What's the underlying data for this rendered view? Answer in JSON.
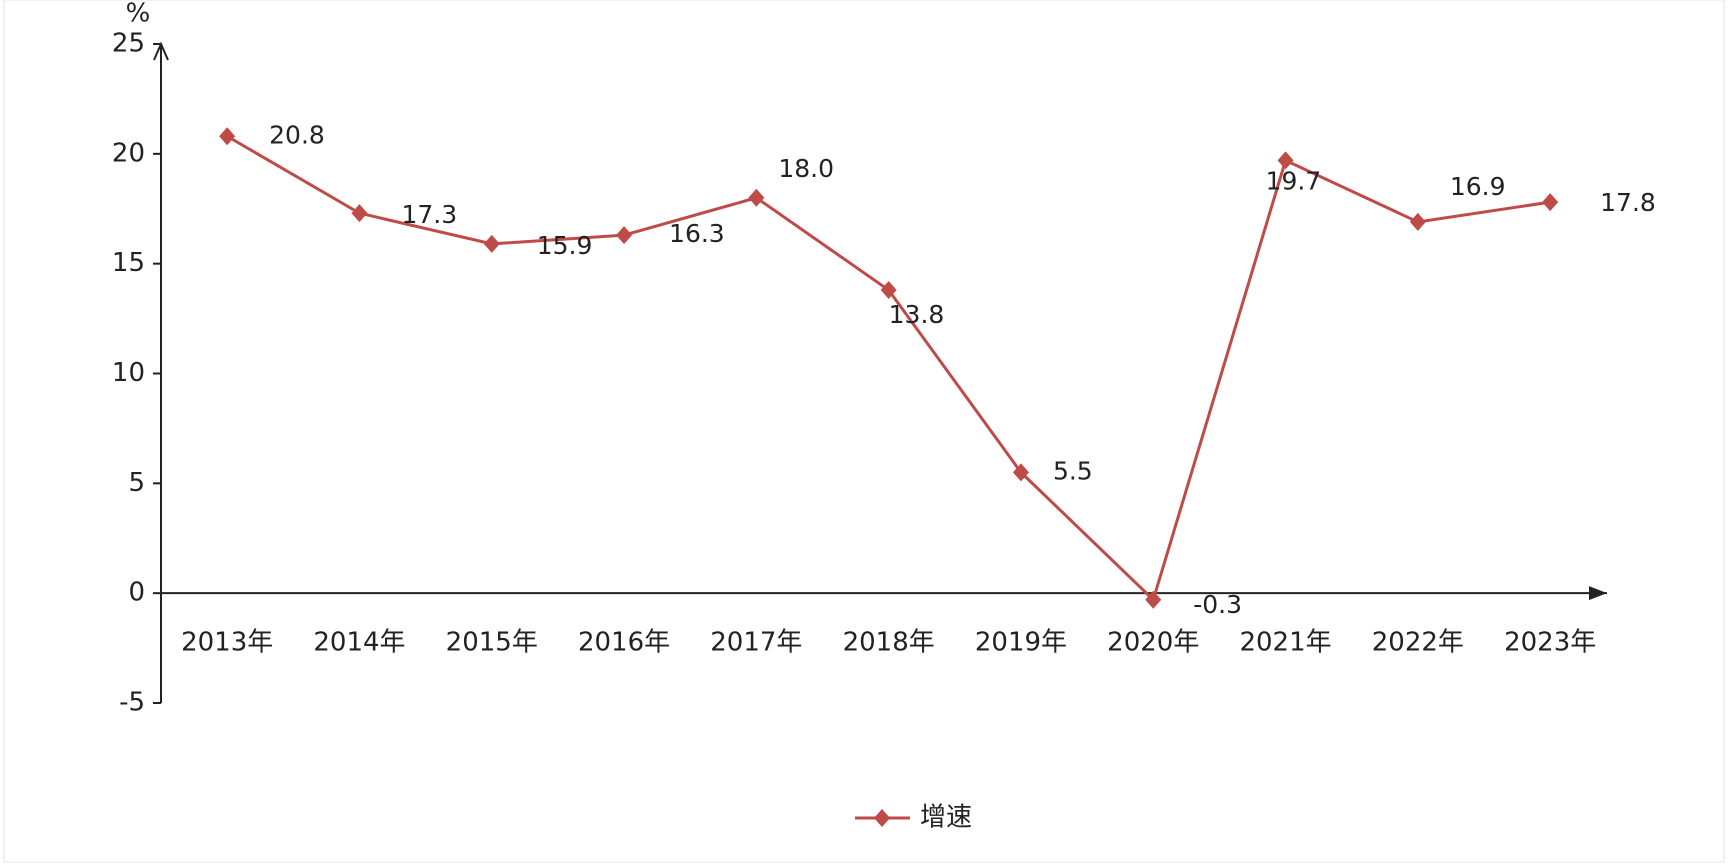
{
  "chart_data": {
    "type": "line",
    "y_label": "%",
    "categories": [
      "2013年",
      "2014年",
      "2015年",
      "2016年",
      "2017年",
      "2018年",
      "2019年",
      "2020年",
      "2021年",
      "2022年",
      "2023年"
    ],
    "series": [
      {
        "name": "增速",
        "color": "#bf4b48",
        "values": [
          20.8,
          17.3,
          15.9,
          16.3,
          18.0,
          13.8,
          5.5,
          -0.3,
          19.7,
          16.9,
          17.8
        ],
        "value_labels": [
          "20.8",
          "17.3",
          "15.9",
          "16.3",
          "18.0",
          "13.8",
          "5.5",
          "-0.3",
          "19.7",
          "16.9",
          "17.8"
        ]
      }
    ],
    "ylim": [
      -5,
      25
    ],
    "yticks": [
      -5,
      0,
      5,
      10,
      15,
      20,
      25
    ],
    "legend": "bottom"
  }
}
